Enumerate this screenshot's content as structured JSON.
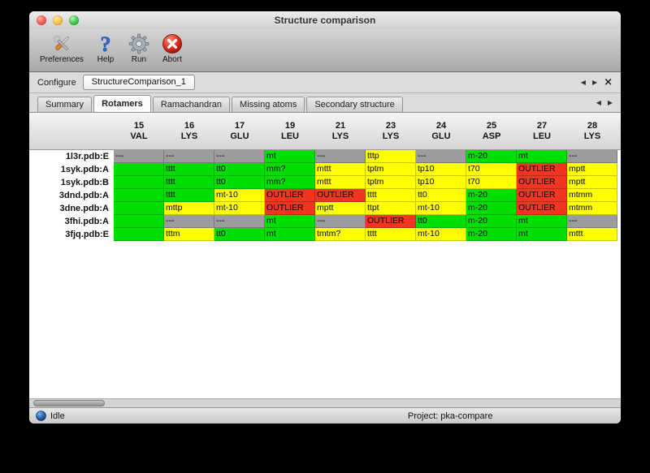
{
  "window": {
    "title": "Structure comparison"
  },
  "toolbar": {
    "buttons": [
      {
        "label": "Preferences",
        "icon": "tools-icon"
      },
      {
        "label": "Help",
        "icon": "help-icon"
      },
      {
        "label": "Run",
        "icon": "gear-icon"
      },
      {
        "label": "Abort",
        "icon": "abort-icon"
      }
    ]
  },
  "configure": {
    "label": "Configure",
    "active_config": "StructureComparison_1",
    "nav": {
      "prev": "◀",
      "next": "▶",
      "close": "×"
    }
  },
  "tabs": {
    "items": [
      "Summary",
      "Rotamers",
      "Ramachandran",
      "Missing atoms",
      "Secondary structure"
    ],
    "active": "Rotamers",
    "nav": {
      "prev": "◀",
      "next": "▶"
    }
  },
  "table": {
    "columns": [
      {
        "num": "15",
        "res": "VAL"
      },
      {
        "num": "16",
        "res": "LYS"
      },
      {
        "num": "17",
        "res": "GLU"
      },
      {
        "num": "19",
        "res": "LEU"
      },
      {
        "num": "21",
        "res": "LYS"
      },
      {
        "num": "23",
        "res": "LYS"
      },
      {
        "num": "24",
        "res": "GLU"
      },
      {
        "num": "25",
        "res": "ASP"
      },
      {
        "num": "27",
        "res": "LEU"
      },
      {
        "num": "28",
        "res": "LYS"
      }
    ],
    "rows": [
      {
        "name": "1l3r.pdb:E",
        "cells": [
          {
            "text": "---",
            "status": "missing"
          },
          {
            "text": "---",
            "status": "missing"
          },
          {
            "text": "---",
            "status": "missing"
          },
          {
            "text": "mt",
            "status": "ok"
          },
          {
            "text": "---",
            "status": "missing"
          },
          {
            "text": "tttp",
            "status": "warn"
          },
          {
            "text": "---",
            "status": "missing"
          },
          {
            "text": "m-20",
            "status": "ok"
          },
          {
            "text": "mt",
            "status": "ok"
          },
          {
            "text": "---",
            "status": "missing"
          }
        ]
      },
      {
        "name": "1syk.pdb:A",
        "cells": [
          {
            "text": "",
            "status": "ok"
          },
          {
            "text": "tttt",
            "status": "ok"
          },
          {
            "text": "tt0",
            "status": "ok"
          },
          {
            "text": "mm?",
            "status": "ok"
          },
          {
            "text": "mttt",
            "status": "warn"
          },
          {
            "text": "tptm",
            "status": "warn"
          },
          {
            "text": "tp10",
            "status": "warn"
          },
          {
            "text": "t70",
            "status": "warn"
          },
          {
            "text": "OUTLIER",
            "status": "outlier"
          },
          {
            "text": "mptt",
            "status": "warn"
          }
        ]
      },
      {
        "name": "1syk.pdb:B",
        "cells": [
          {
            "text": "",
            "status": "ok"
          },
          {
            "text": "tttt",
            "status": "ok"
          },
          {
            "text": "tt0",
            "status": "ok"
          },
          {
            "text": "mm?",
            "status": "ok"
          },
          {
            "text": "mttt",
            "status": "warn"
          },
          {
            "text": "tptm",
            "status": "warn"
          },
          {
            "text": "tp10",
            "status": "warn"
          },
          {
            "text": "t70",
            "status": "warn"
          },
          {
            "text": "OUTLIER",
            "status": "outlier"
          },
          {
            "text": "mptt",
            "status": "warn"
          }
        ]
      },
      {
        "name": "3dnd.pdb:A",
        "cells": [
          {
            "text": "",
            "status": "ok"
          },
          {
            "text": "tttt",
            "status": "ok"
          },
          {
            "text": "mt-10",
            "status": "warn"
          },
          {
            "text": "OUTLIER",
            "status": "outlier"
          },
          {
            "text": "OUTLIER",
            "status": "outlier"
          },
          {
            "text": "tttt",
            "status": "warn"
          },
          {
            "text": "tt0",
            "status": "warn"
          },
          {
            "text": "m-20",
            "status": "ok"
          },
          {
            "text": "OUTLIER",
            "status": "outlier"
          },
          {
            "text": "mtmm",
            "status": "warn"
          }
        ]
      },
      {
        "name": "3dne.pdb:A",
        "cells": [
          {
            "text": "",
            "status": "ok"
          },
          {
            "text": "mttp",
            "status": "warn"
          },
          {
            "text": "mt-10",
            "status": "warn"
          },
          {
            "text": "OUTLIER",
            "status": "outlier"
          },
          {
            "text": "mptt",
            "status": "warn"
          },
          {
            "text": "ttpt",
            "status": "warn"
          },
          {
            "text": "mt-10",
            "status": "warn"
          },
          {
            "text": "m-20",
            "status": "ok"
          },
          {
            "text": "OUTLIER",
            "status": "outlier"
          },
          {
            "text": "mtmm",
            "status": "warn"
          }
        ]
      },
      {
        "name": "3fhi.pdb:A",
        "cells": [
          {
            "text": "",
            "status": "ok"
          },
          {
            "text": "---",
            "status": "missing"
          },
          {
            "text": "---",
            "status": "missing"
          },
          {
            "text": "mt",
            "status": "ok"
          },
          {
            "text": "---",
            "status": "missing"
          },
          {
            "text": "OUTLIER",
            "status": "outlier"
          },
          {
            "text": "tt0",
            "status": "ok"
          },
          {
            "text": "m-20",
            "status": "ok"
          },
          {
            "text": "mt",
            "status": "ok"
          },
          {
            "text": "---",
            "status": "missing"
          }
        ]
      },
      {
        "name": "3fjq.pdb:E",
        "cells": [
          {
            "text": "",
            "status": "ok"
          },
          {
            "text": "tttm",
            "status": "warn"
          },
          {
            "text": "tt0",
            "status": "ok"
          },
          {
            "text": "mt",
            "status": "ok"
          },
          {
            "text": "tmtm?",
            "status": "warn"
          },
          {
            "text": "tttt",
            "status": "warn"
          },
          {
            "text": "mt-10",
            "status": "warn"
          },
          {
            "text": "m-20",
            "status": "ok"
          },
          {
            "text": "mt",
            "status": "ok"
          },
          {
            "text": "mttt",
            "status": "warn"
          }
        ]
      }
    ]
  },
  "statusbar": {
    "status": "Idle",
    "project": "Project: pka-compare"
  },
  "colors": {
    "ok": "#00dd00",
    "warn": "#ffff00",
    "outlier": "#f23520",
    "missing": "#9c9c9c"
  }
}
